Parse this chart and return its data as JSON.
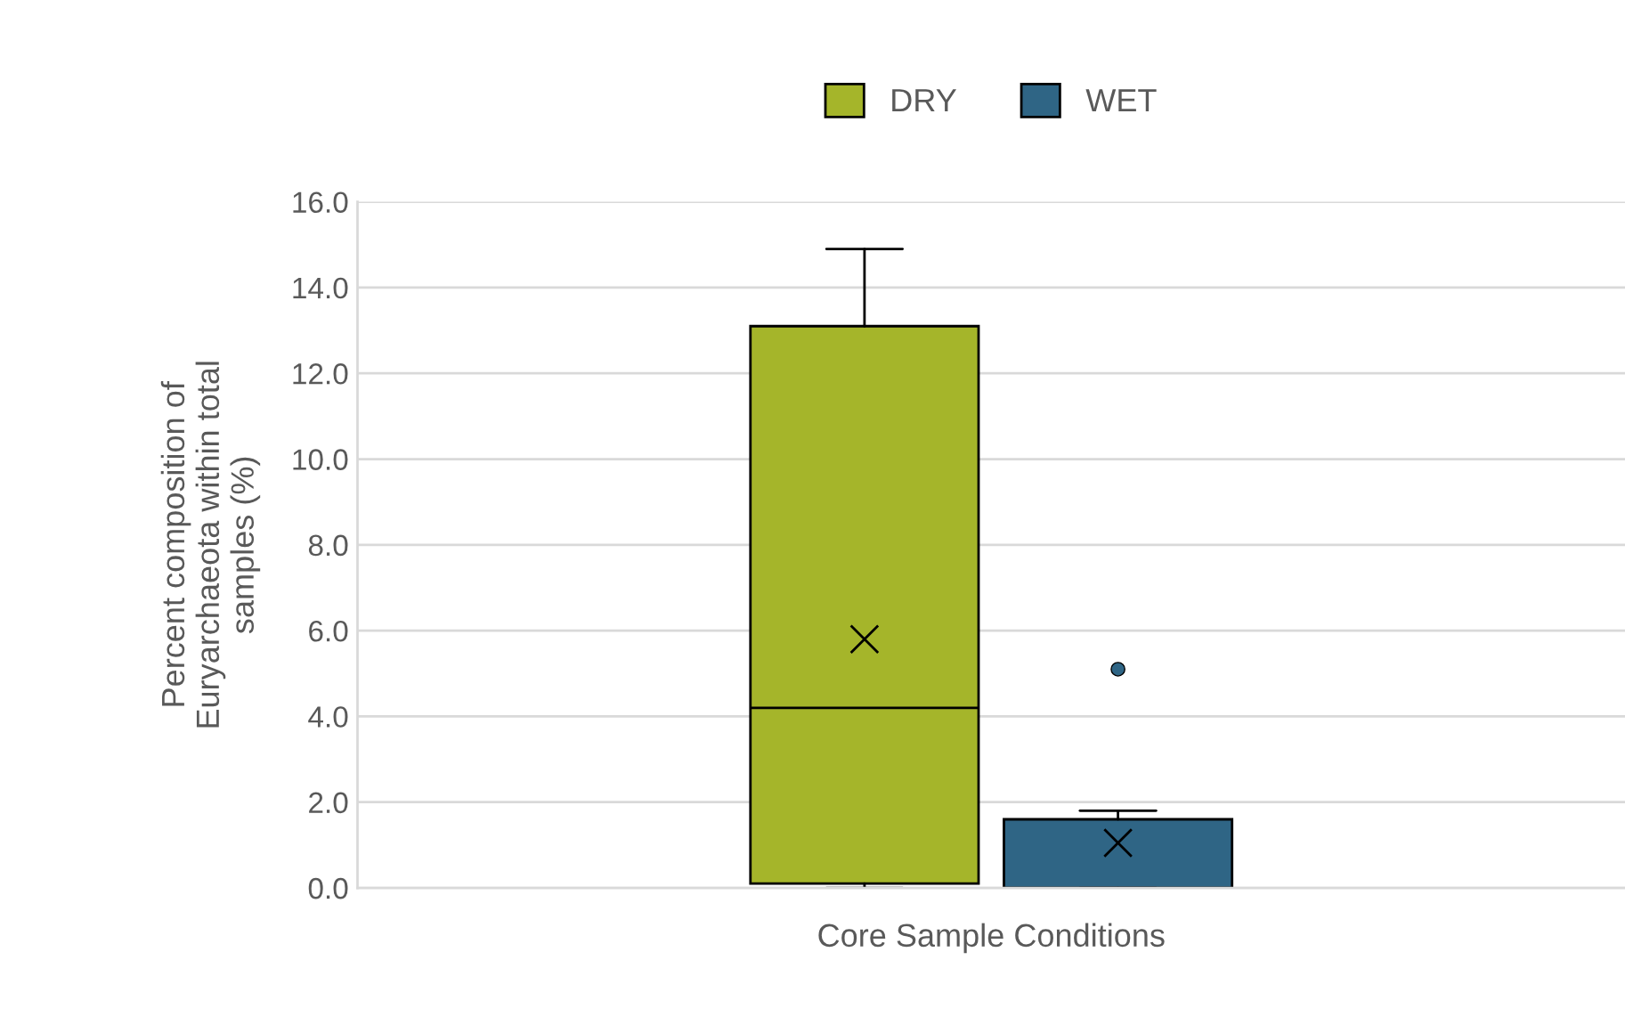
{
  "chart_data": {
    "type": "box",
    "xlabel": "Core Sample Conditions",
    "ylabel": "Percent composition of\nEuryarchaeota within total\nsamples (%)",
    "categories": [
      null
    ],
    "series": [
      {
        "name": "DRY",
        "color": "#a5b52a",
        "boxes": [
          {
            "low": 0.0,
            "q1": 0.1,
            "median": 4.2,
            "q3": 13.1,
            "high": 14.9,
            "mean": 5.8
          }
        ]
      },
      {
        "name": "WET",
        "color": "#2f6585",
        "boxes": [
          {
            "low": 0.0,
            "q1": 0.0,
            "median": 0.0,
            "q3": 1.6,
            "high": 1.8,
            "mean": 1.05,
            "outliers": [
              5.1
            ]
          }
        ]
      }
    ],
    "ylim": [
      0,
      16
    ],
    "yticks": [
      {
        "value": 0,
        "label": "0.0"
      },
      {
        "value": 2,
        "label": "2.0"
      },
      {
        "value": 4,
        "label": "4.0"
      },
      {
        "value": 6,
        "label": "6.0"
      },
      {
        "value": 8,
        "label": "8.0"
      },
      {
        "value": 10,
        "label": "10.0"
      },
      {
        "value": 12,
        "label": "12.0"
      },
      {
        "value": 14,
        "label": "14.0"
      },
      {
        "value": 16,
        "label": "16.0"
      }
    ],
    "grid": "y",
    "legend": "top"
  }
}
